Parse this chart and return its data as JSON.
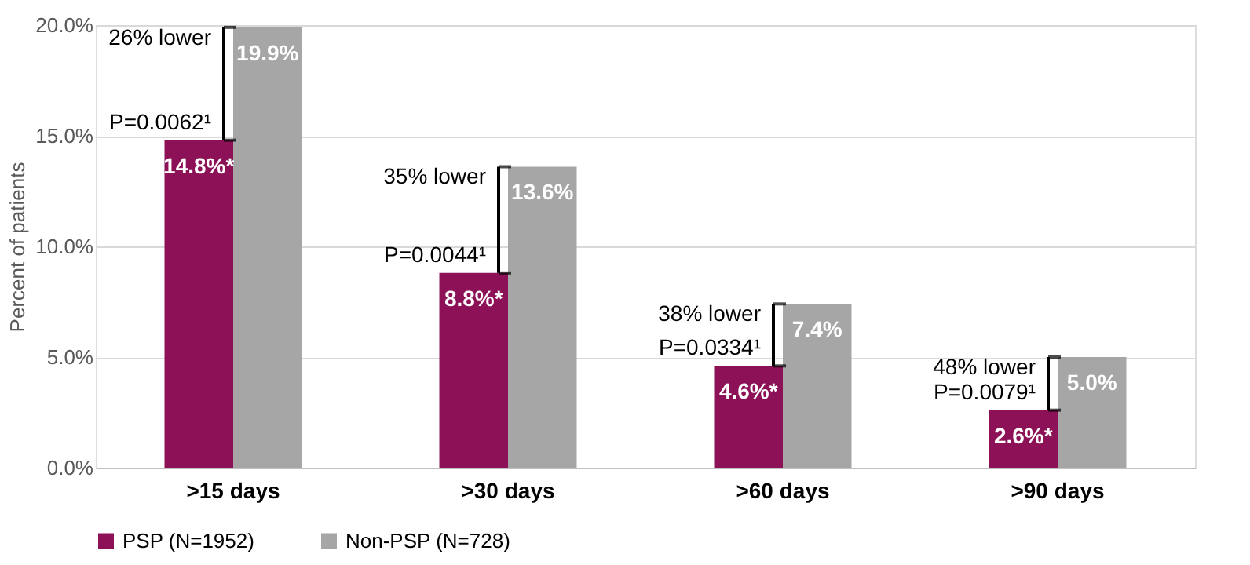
{
  "chart_data": {
    "type": "bar",
    "ylabel": "Percent of patients",
    "categories": [
      ">15 days",
      ">30 days",
      ">60 days",
      ">90 days"
    ],
    "series": [
      {
        "name": "PSP (N=1952)",
        "color": "#8c1157",
        "values": [
          14.8,
          8.8,
          4.6,
          2.6
        ],
        "value_labels": [
          "14.8%*",
          "8.8%*",
          "4.6%*",
          "2.6%*"
        ]
      },
      {
        "name": "Non-PSP (N=728)",
        "color": "#a6a6a6",
        "values": [
          19.9,
          13.6,
          7.4,
          5.0
        ],
        "value_labels": [
          "19.9%",
          "13.6%",
          "7.4%",
          "5.0%"
        ]
      }
    ],
    "ylim": [
      0,
      20
    ],
    "yticks": [
      {
        "value": 0,
        "label": "0.0%"
      },
      {
        "value": 5,
        "label": "5.0%"
      },
      {
        "value": 10,
        "label": "10.0%"
      },
      {
        "value": 15,
        "label": "15.0%"
      },
      {
        "value": 20,
        "label": "20.0%"
      }
    ],
    "grid": "y",
    "legend": "bottom",
    "annotations": [
      {
        "text": "26% lower",
        "x": ">15 days",
        "y": 19.9
      },
      {
        "text": "P=0.0062¹",
        "x": ">15 days",
        "y": 14.8
      },
      {
        "text": "35% lower",
        "x": ">30 days",
        "y": 13.6
      },
      {
        "text": "P=0.0044¹",
        "x": ">30 days",
        "y": 8.8
      },
      {
        "text": "38% lower",
        "x": ">60 days",
        "y": 7.4
      },
      {
        "text": "P=0.0334¹",
        "x": ">60 days",
        "y": 4.6
      },
      {
        "text": "48% lower",
        "x": ">90 days",
        "y": 5.0
      },
      {
        "text": "P=0.0079¹",
        "x": ">90 days",
        "y": 2.6
      }
    ]
  }
}
